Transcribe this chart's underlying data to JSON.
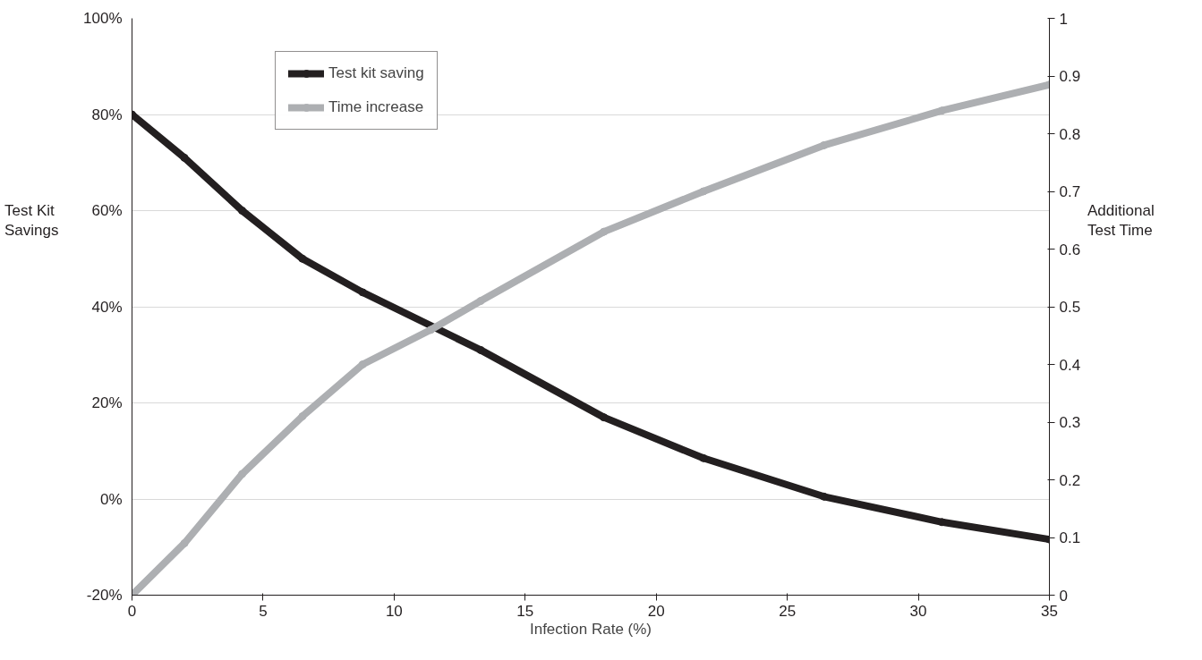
{
  "chart_data": {
    "type": "line",
    "xlabel": "Infection Rate (%)",
    "ylabel": "Test Kit Savings",
    "y2label": "Additional Test Time",
    "xlim": [
      0,
      35
    ],
    "xticks": [
      0,
      5,
      10,
      15,
      20,
      25,
      30,
      35
    ],
    "ylim": [
      -20,
      100
    ],
    "yticks": [
      {
        "value": -20,
        "label": "-20%"
      },
      {
        "value": 0,
        "label": "0%"
      },
      {
        "value": 20,
        "label": "20%"
      },
      {
        "value": 40,
        "label": "40%"
      },
      {
        "value": 60,
        "label": "60%"
      },
      {
        "value": 80,
        "label": "80%"
      },
      {
        "value": 100,
        "label": "100%"
      }
    ],
    "y2lim": [
      0,
      1
    ],
    "y2ticks": [
      0,
      0.1,
      0.2,
      0.3,
      0.4,
      0.5,
      0.6,
      0.7,
      0.8,
      0.9,
      1
    ],
    "grid": "y",
    "legend": "top left",
    "marker": "circle",
    "line_style": "solid",
    "series": [
      {
        "name": "Test kit saving",
        "color": "#231f20",
        "x": [
          0,
          2,
          4.2,
          6.5,
          8.8,
          13.3,
          18,
          21.8,
          26.4,
          30.9,
          35
        ],
        "values": [
          80,
          71,
          60,
          50,
          43,
          31,
          17,
          8.5,
          0.5,
          -4.8,
          -8.4
        ]
      },
      {
        "name": "Time increase",
        "color": "#adafb2",
        "axis": "y2",
        "x": [
          0,
          2,
          4.2,
          6.5,
          8.8,
          11.4,
          13.3,
          18,
          21.8,
          26.4,
          30.9,
          35
        ],
        "values": [
          0,
          0.09,
          0.21,
          0.31,
          0.4,
          0.46,
          0.51,
          0.63,
          0.7,
          0.78,
          0.84,
          0.885
        ]
      }
    ]
  }
}
